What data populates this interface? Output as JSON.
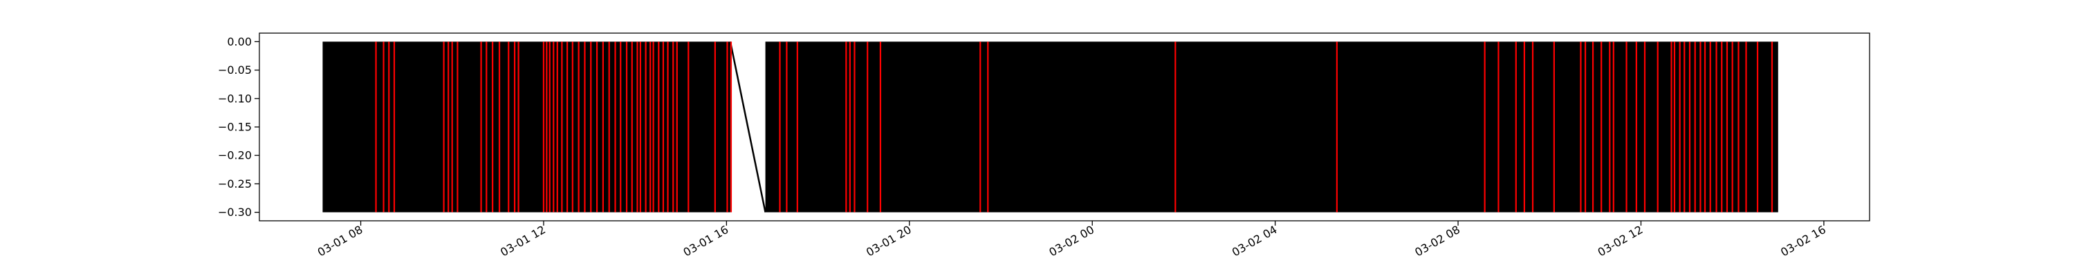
{
  "chart_data": {
    "type": "line",
    "title": "",
    "xlabel": "",
    "ylabel": "",
    "x_range": [
      "2025-03-01 05:47",
      "2025-03-02 17:00"
    ],
    "ylim": [
      -0.315,
      0.015
    ],
    "yticks": [
      {
        "value": 0.0,
        "label": "0.00"
      },
      {
        "value": -0.05,
        "label": "−0.05"
      },
      {
        "value": -0.1,
        "label": "−0.10"
      },
      {
        "value": -0.15,
        "label": "−0.15"
      },
      {
        "value": -0.2,
        "label": "−0.20"
      },
      {
        "value": -0.25,
        "label": "−0.25"
      },
      {
        "value": -0.3,
        "label": "−0.30"
      }
    ],
    "xticks": [
      {
        "value": "2025-03-01 08:00",
        "label": "03-01 08"
      },
      {
        "value": "2025-03-01 12:00",
        "label": "03-01 12"
      },
      {
        "value": "2025-03-01 16:00",
        "label": "03-01 16"
      },
      {
        "value": "2025-03-01 20:00",
        "label": "03-01 20"
      },
      {
        "value": "2025-03-02 00:00",
        "label": "03-02 00"
      },
      {
        "value": "2025-03-02 04:00",
        "label": "03-02 04"
      },
      {
        "value": "2025-03-02 08:00",
        "label": "03-02 08"
      },
      {
        "value": "2025-03-02 12:00",
        "label": "03-02 12"
      },
      {
        "value": "2025-03-02 16:00",
        "label": "03-02 16"
      }
    ],
    "grid": false,
    "series": [
      {
        "color": "#000000",
        "oscillation": {
          "high": 0.0,
          "low": -0.3
        },
        "segments": [
          {
            "start": "2025-03-01 07:10",
            "end": "2025-03-01 16:05"
          },
          {
            "start": "2025-03-01 16:51",
            "end": "2025-03-02 15:00"
          }
        ],
        "connector": [
          {
            "x": "2025-03-01 16:05",
            "y": 0.0
          },
          {
            "x": "2025-03-01 16:51",
            "y": -0.3
          }
        ]
      }
    ],
    "vlines": {
      "color": "#ff0000",
      "y_range": [
        -0.3,
        0.0
      ],
      "x": [
        "2025-03-01 08:20",
        "2025-03-01 08:30",
        "2025-03-01 08:37",
        "2025-03-01 08:44",
        "2025-03-01 09:49",
        "2025-03-01 09:55",
        "2025-03-01 10:00",
        "2025-03-01 10:07",
        "2025-03-01 10:38",
        "2025-03-01 10:45",
        "2025-03-01 10:53",
        "2025-03-01 11:02",
        "2025-03-01 11:14",
        "2025-03-01 11:22",
        "2025-03-01 11:27",
        "2025-03-01 12:00",
        "2025-03-01 12:04",
        "2025-03-01 12:08",
        "2025-03-01 12:13",
        "2025-03-01 12:18",
        "2025-03-01 12:24",
        "2025-03-01 12:31",
        "2025-03-01 12:38",
        "2025-03-01 12:46",
        "2025-03-01 12:54",
        "2025-03-01 13:02",
        "2025-03-01 13:10",
        "2025-03-01 13:18",
        "2025-03-01 13:26",
        "2025-03-01 13:34",
        "2025-03-01 13:41",
        "2025-03-01 13:49",
        "2025-03-01 13:56",
        "2025-03-01 14:03",
        "2025-03-01 14:07",
        "2025-03-01 14:14",
        "2025-03-01 14:20",
        "2025-03-01 14:24",
        "2025-03-01 14:31",
        "2025-03-01 14:37",
        "2025-03-01 14:43",
        "2025-03-01 14:50",
        "2025-03-01 14:55",
        "2025-03-01 15:10",
        "2025-03-01 15:45",
        "2025-03-01 16:01",
        "2025-03-01 16:06",
        "2025-03-01 17:10",
        "2025-03-01 17:19",
        "2025-03-01 17:33",
        "2025-03-01 18:37",
        "2025-03-01 18:42",
        "2025-03-01 18:48",
        "2025-03-01 19:05",
        "2025-03-01 19:22",
        "2025-03-01 21:33",
        "2025-03-01 21:43",
        "2025-03-02 01:49",
        "2025-03-02 05:21",
        "2025-03-02 08:35",
        "2025-03-02 08:53",
        "2025-03-02 09:16",
        "2025-03-02 09:27",
        "2025-03-02 09:38",
        "2025-03-02 10:06",
        "2025-03-02 10:41",
        "2025-03-02 10:47",
        "2025-03-02 10:57",
        "2025-03-02 11:08",
        "2025-03-02 11:19",
        "2025-03-02 11:24",
        "2025-03-02 11:41",
        "2025-03-02 11:54",
        "2025-03-02 12:05",
        "2025-03-02 12:22",
        "2025-03-02 12:40",
        "2025-03-02 12:44",
        "2025-03-02 12:51",
        "2025-03-02 12:57",
        "2025-03-02 13:04",
        "2025-03-02 13:11",
        "2025-03-02 13:18",
        "2025-03-02 13:24",
        "2025-03-02 13:31",
        "2025-03-02 13:39",
        "2025-03-02 13:46",
        "2025-03-02 13:53",
        "2025-03-02 14:00",
        "2025-03-02 14:08",
        "2025-03-02 14:18",
        "2025-03-02 14:33",
        "2025-03-02 14:52"
      ]
    }
  }
}
